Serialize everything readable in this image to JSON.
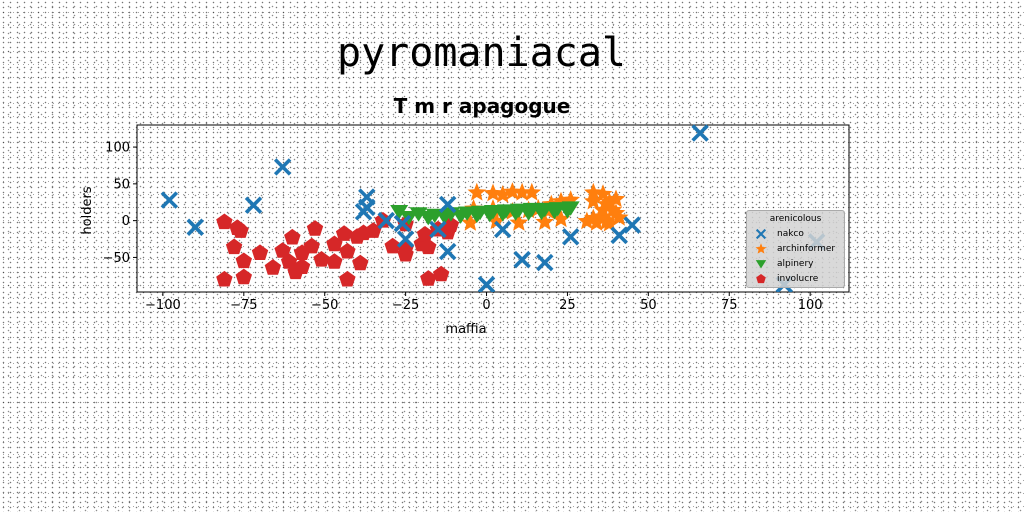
{
  "suptitle": "pyromaniacal",
  "chart_data": {
    "type": "scatter",
    "title": "T m r apagogue",
    "xlabel": "maffia",
    "ylabel": "holders",
    "xlim": [
      -108,
      112
    ],
    "ylim": [
      -97,
      130
    ],
    "xticks": [
      "−100",
      "−75",
      "−50",
      "−25",
      "0",
      "25",
      "50",
      "75",
      "100"
    ],
    "xtick_values": [
      -100,
      -75,
      -50,
      -25,
      0,
      25,
      50,
      75,
      100
    ],
    "yticks": [
      "100",
      "50",
      "0",
      "−50"
    ],
    "ytick_values": [
      100,
      50,
      0,
      -50
    ],
    "legend": {
      "title": "arenicolous",
      "position": "lower-right"
    },
    "series": [
      {
        "name": "nakco",
        "marker": "X",
        "color": "#1f77b4",
        "points": [
          [
            -98,
            28
          ],
          [
            -90,
            -9
          ],
          [
            -72,
            21
          ],
          [
            -63,
            73
          ],
          [
            -37,
            32
          ],
          [
            -37,
            18
          ],
          [
            -38,
            12
          ],
          [
            -12,
            -42
          ],
          [
            -15,
            -12
          ],
          [
            -25,
            -25
          ],
          [
            -26,
            -4
          ],
          [
            -31,
            0
          ],
          [
            -12,
            22
          ],
          [
            5,
            -12
          ],
          [
            11,
            -53
          ],
          [
            18,
            -57
          ],
          [
            26,
            -22
          ],
          [
            0,
            -87
          ],
          [
            41,
            -20
          ],
          [
            45,
            -6
          ],
          [
            66,
            119
          ],
          [
            92,
            -87
          ],
          [
            102,
            -29
          ]
        ]
      },
      {
        "name": "archinformer",
        "marker": "*",
        "color": "#ff7f0e",
        "points": [
          [
            -3,
            38
          ],
          [
            2,
            37
          ],
          [
            5,
            35
          ],
          [
            8,
            39
          ],
          [
            11,
            38
          ],
          [
            14,
            38
          ],
          [
            -4,
            16
          ],
          [
            2,
            16
          ],
          [
            8,
            12
          ],
          [
            13,
            14
          ],
          [
            19,
            13
          ],
          [
            23,
            26
          ],
          [
            26,
            28
          ],
          [
            33,
            38
          ],
          [
            36,
            36
          ],
          [
            33,
            3
          ],
          [
            35,
            5
          ],
          [
            37,
            22
          ],
          [
            39,
            14
          ],
          [
            36,
            14
          ],
          [
            38,
            25
          ],
          [
            40,
            10
          ],
          [
            34,
            -3
          ],
          [
            37,
            -2
          ],
          [
            41,
            4
          ],
          [
            -5,
            -3
          ],
          [
            3,
            -1
          ],
          [
            10,
            -3
          ],
          [
            18,
            -2
          ],
          [
            23,
            2
          ],
          [
            16,
            16
          ],
          [
            20,
            22
          ],
          [
            31,
            -1
          ],
          [
            38,
            -4
          ],
          [
            33,
            26
          ],
          [
            40,
            29
          ]
        ]
      },
      {
        "name": "alpinery",
        "marker": "v",
        "color": "#2ca02c",
        "points": [
          [
            -27,
            12
          ],
          [
            -21,
            9
          ],
          [
            -16,
            7
          ],
          [
            -11,
            9
          ],
          [
            -6,
            10
          ],
          [
            -2,
            11
          ],
          [
            2,
            12
          ],
          [
            6,
            13
          ],
          [
            10,
            14
          ],
          [
            14,
            15
          ],
          [
            18,
            15
          ],
          [
            22,
            16
          ],
          [
            26,
            17
          ],
          [
            -24,
            4
          ],
          [
            -18,
            4
          ],
          [
            -13,
            5
          ],
          [
            -8,
            6
          ],
          [
            -3,
            7
          ],
          [
            1,
            8
          ],
          [
            5,
            9
          ],
          [
            9,
            10
          ],
          [
            13,
            10
          ],
          [
            17,
            11
          ],
          [
            21,
            12
          ],
          [
            25,
            13
          ]
        ]
      },
      {
        "name": "involucre",
        "marker": "p",
        "color": "#d62728",
        "points": [
          [
            -81,
            -2
          ],
          [
            -77,
            -10
          ],
          [
            -76,
            -14
          ],
          [
            -78,
            -36
          ],
          [
            -75,
            -55
          ],
          [
            -81,
            -80
          ],
          [
            -75,
            -77
          ],
          [
            -70,
            -44
          ],
          [
            -66,
            -64
          ],
          [
            -63,
            -41
          ],
          [
            -61,
            -56
          ],
          [
            -60,
            -23
          ],
          [
            -59,
            -70
          ],
          [
            -57,
            -44
          ],
          [
            -57,
            -63
          ],
          [
            -54,
            -35
          ],
          [
            -53,
            -11
          ],
          [
            -51,
            -53
          ],
          [
            -47,
            -56
          ],
          [
            -47,
            -32
          ],
          [
            -44,
            -18
          ],
          [
            -43,
            -42
          ],
          [
            -43,
            -80
          ],
          [
            -40,
            -22
          ],
          [
            -39,
            -58
          ],
          [
            -38,
            -17
          ],
          [
            -35,
            -14
          ],
          [
            -32,
            0
          ],
          [
            -29,
            -35
          ],
          [
            -25,
            -38
          ],
          [
            -25,
            -46
          ],
          [
            -25,
            -5
          ],
          [
            -20,
            -32
          ],
          [
            -19,
            -19
          ],
          [
            -18,
            -36
          ],
          [
            -15,
            -12
          ],
          [
            -12,
            -16
          ],
          [
            -11,
            -6
          ],
          [
            -18,
            -79
          ],
          [
            -14,
            -73
          ]
        ]
      }
    ]
  }
}
